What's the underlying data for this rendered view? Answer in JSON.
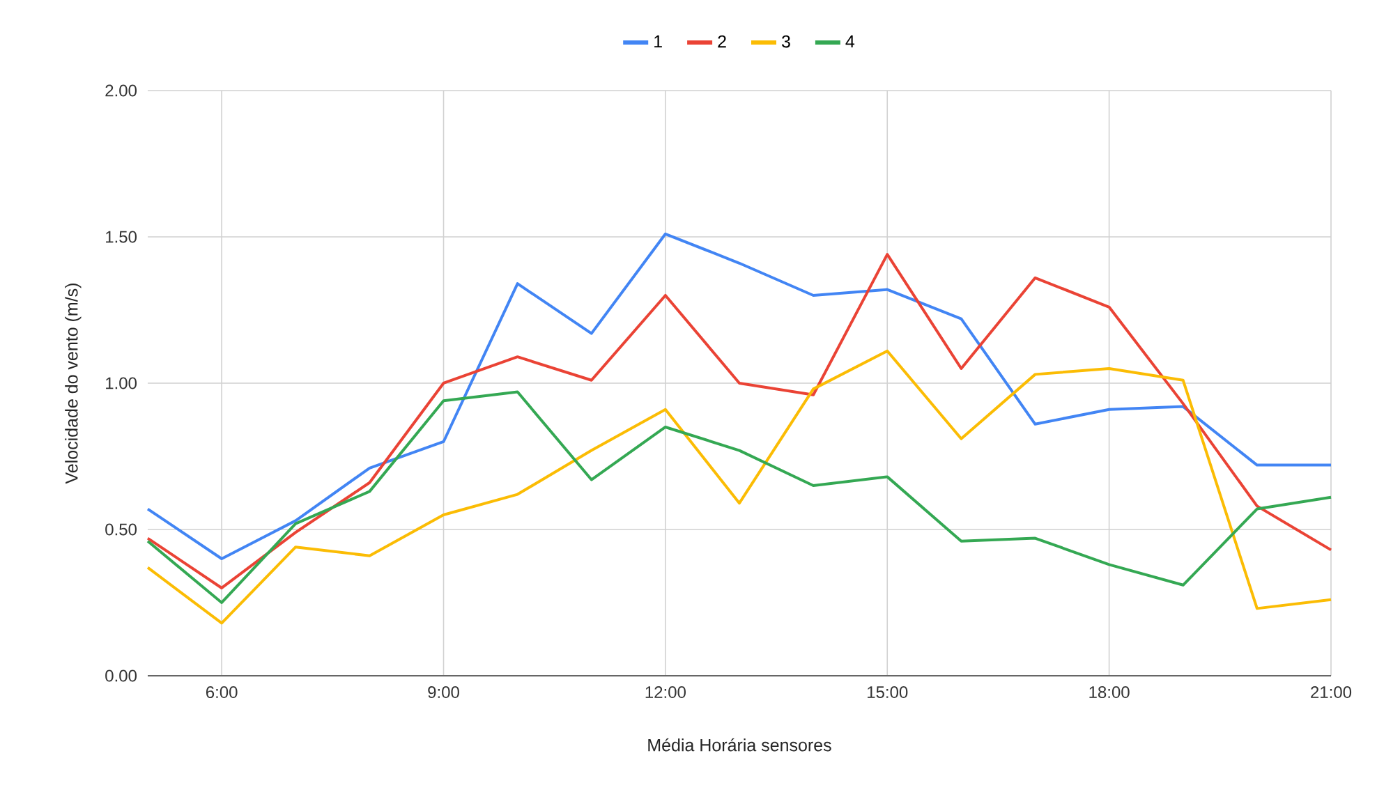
{
  "chart_data": {
    "type": "line",
    "xlabel": "Média Horária sensores",
    "ylabel": "Velocidade do vento (m/s)",
    "x": [
      5,
      6,
      7,
      8,
      9,
      10,
      11,
      12,
      13,
      14,
      15,
      16,
      17,
      18,
      19,
      20,
      21
    ],
    "series": [
      {
        "name": "1",
        "color": "#4285f4",
        "values": [
          0.57,
          0.4,
          0.53,
          0.71,
          0.8,
          1.34,
          1.17,
          1.51,
          1.41,
          1.3,
          1.32,
          1.22,
          0.86,
          0.91,
          0.92,
          0.72,
          0.72
        ]
      },
      {
        "name": "2",
        "color": "#ea4335",
        "values": [
          0.47,
          0.3,
          0.49,
          0.66,
          1.0,
          1.09,
          1.01,
          1.3,
          1.0,
          0.96,
          1.44,
          1.05,
          1.36,
          1.26,
          0.93,
          0.58,
          0.43
        ]
      },
      {
        "name": "3",
        "color": "#fbbc04",
        "values": [
          0.37,
          0.18,
          0.44,
          0.41,
          0.55,
          0.62,
          0.77,
          0.91,
          0.59,
          0.98,
          1.11,
          0.81,
          1.03,
          1.05,
          1.01,
          0.23,
          0.26
        ]
      },
      {
        "name": "4",
        "color": "#34a853",
        "values": [
          0.46,
          0.25,
          0.52,
          0.63,
          0.94,
          0.97,
          0.67,
          0.85,
          0.77,
          0.65,
          0.68,
          0.46,
          0.47,
          0.38,
          0.31,
          0.57,
          0.61
        ]
      }
    ],
    "xlim": [
      5,
      21
    ],
    "xticks": [
      {
        "value": 6,
        "label": "6:00"
      },
      {
        "value": 9,
        "label": "9:00"
      },
      {
        "value": 12,
        "label": "12:00"
      },
      {
        "value": 15,
        "label": "15:00"
      },
      {
        "value": 18,
        "label": "18:00"
      },
      {
        "value": 21,
        "label": "21:00"
      }
    ],
    "ylim": [
      0,
      2
    ],
    "yticks": [
      {
        "value": 0,
        "label": "0.00"
      },
      {
        "value": 0.5,
        "label": "0.50"
      },
      {
        "value": 1,
        "label": "1.00"
      },
      {
        "value": 1.5,
        "label": "1.50"
      },
      {
        "value": 2,
        "label": "2.00"
      }
    ],
    "grid": true,
    "legend": "top",
    "marker": "none",
    "line_style": "solid"
  }
}
